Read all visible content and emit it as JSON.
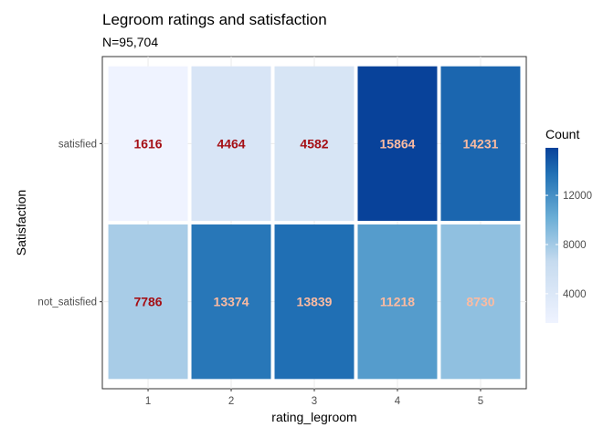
{
  "chart_data": {
    "type": "heatmap",
    "title": "Legroom ratings and satisfaction",
    "subtitle": "N=95,704",
    "xlabel": "rating_legroom",
    "ylabel": "Satisfaction",
    "x_categories": [
      "1",
      "2",
      "3",
      "4",
      "5"
    ],
    "y_categories": [
      "satisfied",
      "not_satisfied"
    ],
    "values": [
      [
        1616,
        4464,
        4582,
        15864,
        14231
      ],
      [
        7786,
        13374,
        13839,
        11218,
        8730
      ]
    ],
    "legend": {
      "title": "Count",
      "ticks": [
        4000,
        8000,
        12000
      ],
      "tick_labels": [
        "4000",
        "8000",
        "12000"
      ],
      "min": 1616,
      "max": 15864
    },
    "grid": true,
    "legend_position": "right",
    "colors": {
      "low": "#eff3ff",
      "mid1": "#c6dbef",
      "mid2": "#6baed6",
      "mid3": "#2171b5",
      "high": "#08429a",
      "label_low": "#a50f15",
      "label_high": "#fcbba1"
    }
  }
}
